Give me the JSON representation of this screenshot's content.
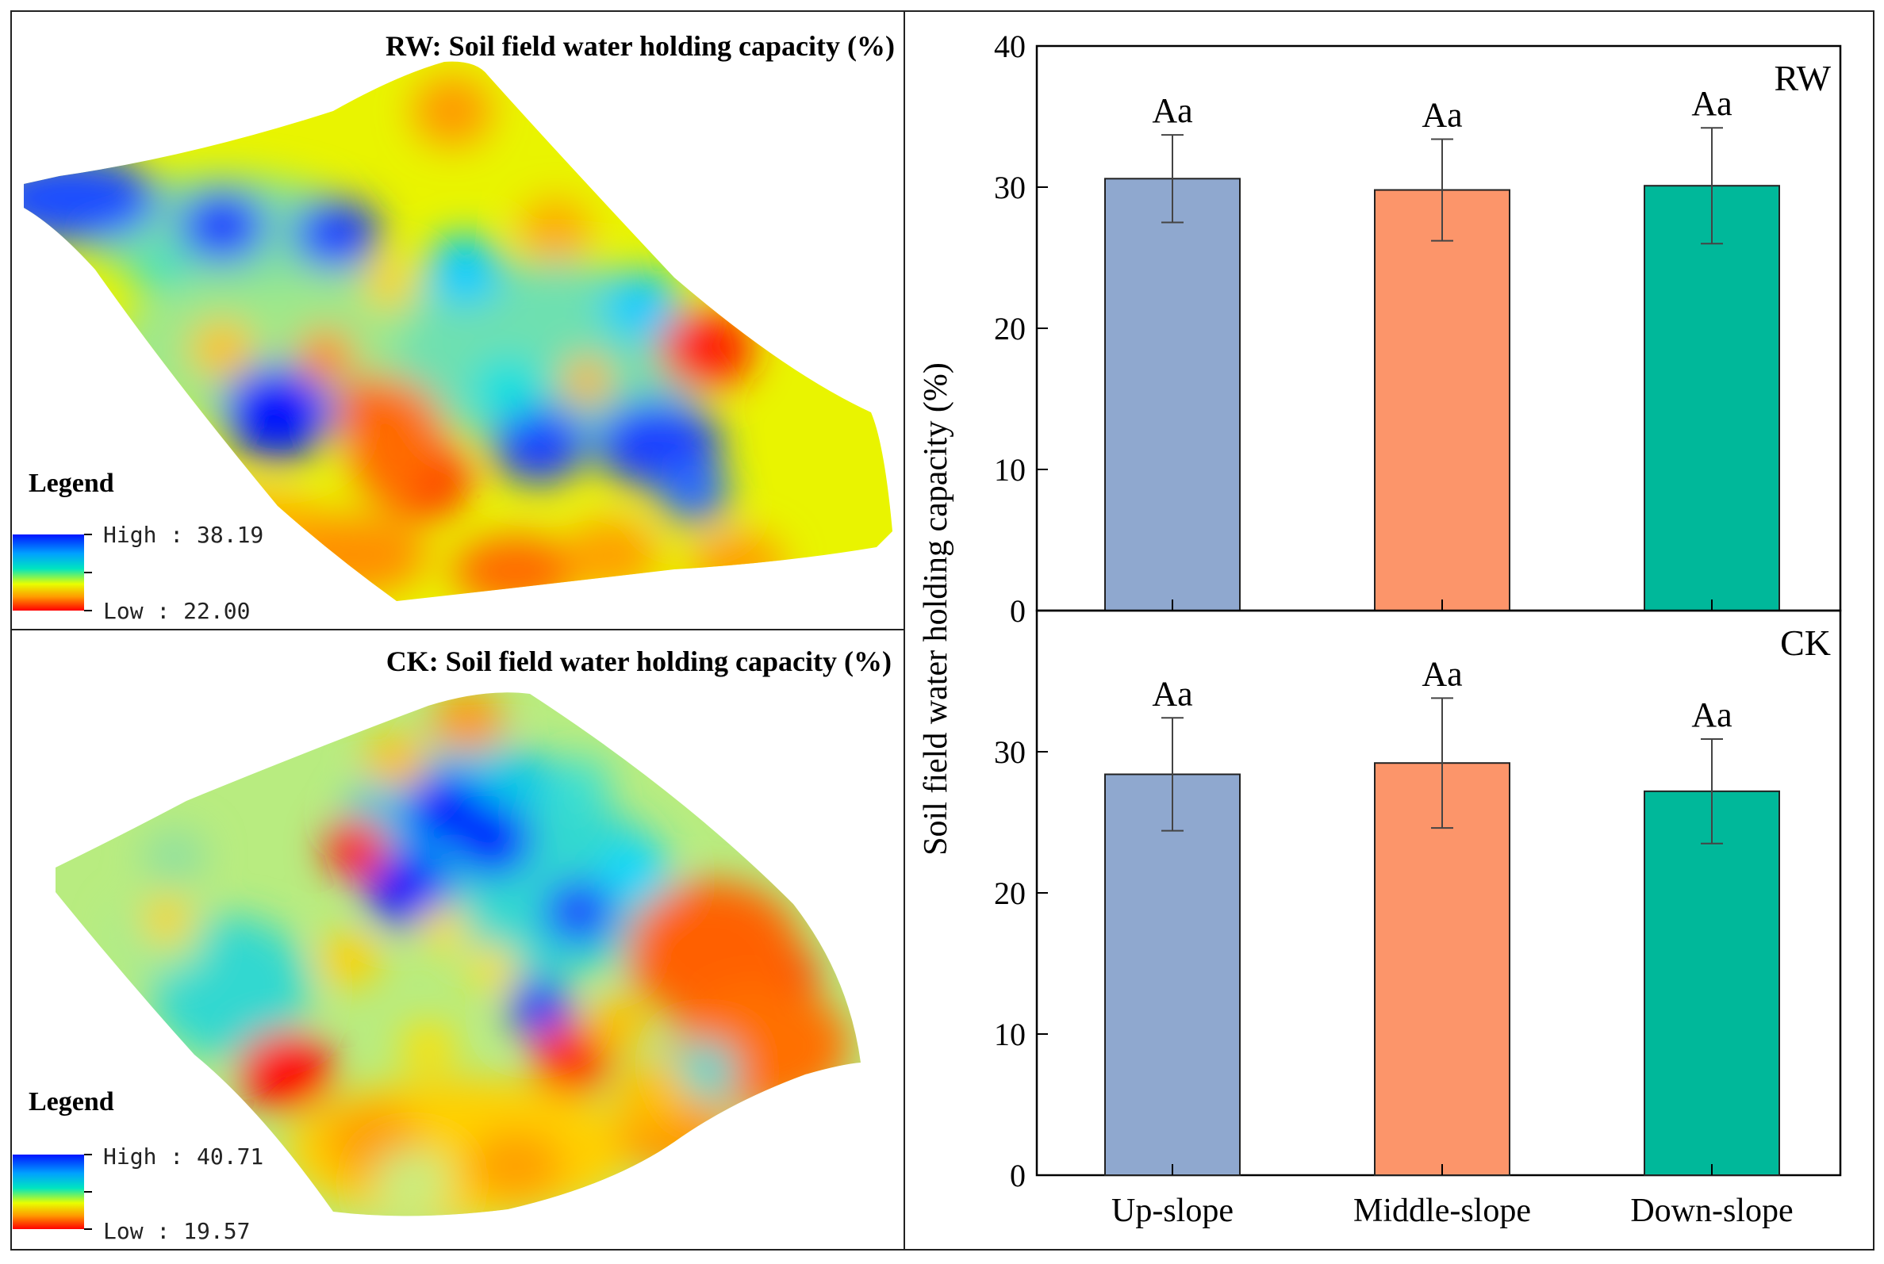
{
  "maps": [
    {
      "title": "RW: Soil field water holding capacity (%)",
      "legend_title": "Legend",
      "high_label": "High : 38.19",
      "low_label": "Low : 22.00"
    },
    {
      "title": "CK: Soil field water holding capacity (%)",
      "legend_title": "Legend",
      "high_label": "High : 40.71",
      "low_label": "Low : 19.57"
    }
  ],
  "colors": {
    "up_slope": "#8fa8cf",
    "middle_slope": "#fc956a",
    "down_slope": "#00b89a",
    "map_high": "#0014ff",
    "map_mid": "#00e5ff",
    "map_low": "#ff0000"
  },
  "chart_data": [
    {
      "type": "bar",
      "panel_label": "RW",
      "ylabel": "Soil field water holding capacity (%)",
      "categories": [
        "Up-slope",
        "Middle-slope",
        "Down-slope"
      ],
      "values": [
        30.6,
        29.8,
        30.1
      ],
      "errors": [
        3.1,
        3.6,
        4.1
      ],
      "annotations": [
        "Aa",
        "Aa",
        "Aa"
      ],
      "ylim": [
        0,
        40
      ],
      "yticks": [
        0,
        10,
        20,
        30,
        40
      ]
    },
    {
      "type": "bar",
      "panel_label": "CK",
      "categories": [
        "Up-slope",
        "Middle-slope",
        "Down-slope"
      ],
      "values": [
        28.4,
        29.2,
        27.2
      ],
      "errors": [
        4.0,
        4.6,
        3.7
      ],
      "annotations": [
        "Aa",
        "Aa",
        "Aa"
      ],
      "ylim": [
        0,
        40
      ],
      "yticks": [
        0,
        10,
        20,
        30
      ]
    }
  ]
}
